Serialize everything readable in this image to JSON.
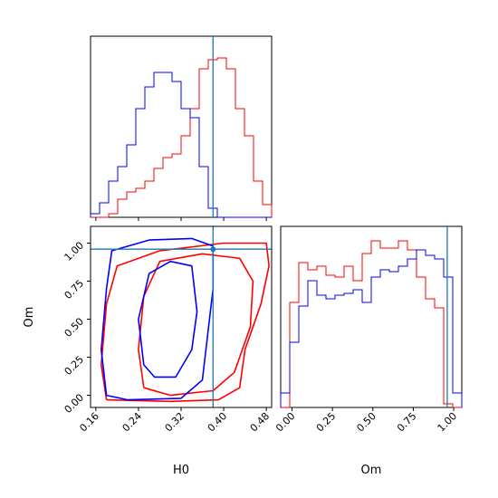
{
  "chart_data": {
    "type": "corner",
    "parameters": [
      "H0",
      "Om"
    ],
    "colors": {
      "series_a": "#ff0000",
      "series_b": "#0000ff",
      "truth": "#1f77b4"
    },
    "truth": {
      "H0": 0.38,
      "Om": 0.96
    },
    "xlim_H0": [
      0.15,
      0.49
    ],
    "xlim_Om": [
      -0.07,
      1.05
    ],
    "ylim_Om": [
      -0.08,
      1.11
    ],
    "ticks_H0": [
      "0.16",
      "0.24",
      "0.32",
      "0.40",
      "0.48"
    ],
    "ticks_Om": [
      "0.00",
      "0.25",
      "0.50",
      "0.75",
      "1.00"
    ],
    "xlabel_H0": "H0",
    "xlabel_Om": "Om",
    "ylabel_Om": "Om",
    "hist_H0": {
      "edges": [
        0.15,
        0.167,
        0.184,
        0.201,
        0.218,
        0.235,
        0.252,
        0.269,
        0.286,
        0.303,
        0.32,
        0.337,
        0.354,
        0.371,
        0.388,
        0.405,
        0.422,
        0.439,
        0.456,
        0.473,
        0.49
      ],
      "series": [
        {
          "color": "#ff0000",
          "values": [
            0,
            0,
            0.02,
            0.1,
            0.14,
            0.16,
            0.2,
            0.27,
            0.33,
            0.35,
            0.45,
            0.6,
            0.82,
            0.87,
            0.88,
            0.82,
            0.6,
            0.45,
            0.2,
            0.07
          ]
        },
        {
          "color": "#0000ff",
          "values": [
            0.02,
            0.08,
            0.2,
            0.28,
            0.4,
            0.6,
            0.72,
            0.8,
            0.8,
            0.75,
            0.6,
            0.55,
            0.28,
            0.05,
            0,
            0,
            0,
            0,
            0,
            0
          ]
        }
      ]
    },
    "hist_Om": {
      "edges": [
        -0.07,
        -0.014,
        0.042,
        0.098,
        0.154,
        0.21,
        0.266,
        0.322,
        0.378,
        0.434,
        0.49,
        0.546,
        0.602,
        0.658,
        0.714,
        0.77,
        0.826,
        0.882,
        0.938,
        0.994,
        1.05
      ],
      "series": [
        {
          "color": "#ff0000",
          "values": [
            0,
            0.58,
            0.8,
            0.76,
            0.78,
            0.73,
            0.72,
            0.78,
            0.7,
            0.85,
            0.92,
            0.88,
            0.88,
            0.92,
            0.87,
            0.72,
            0.6,
            0.55,
            0.02,
            0
          ]
        },
        {
          "color": "#0000ff",
          "values": [
            0.08,
            0.36,
            0.56,
            0.7,
            0.62,
            0.6,
            0.62,
            0.63,
            0.65,
            0.58,
            0.72,
            0.76,
            0.75,
            0.78,
            0.82,
            0.87,
            0.84,
            0.82,
            0.72,
            0.08
          ]
        }
      ]
    },
    "contours": [
      {
        "color": "#ff0000",
        "level": "outer",
        "points": [
          [
            0.18,
            -0.03
          ],
          [
            0.17,
            0.2
          ],
          [
            0.18,
            0.6
          ],
          [
            0.2,
            0.85
          ],
          [
            0.28,
            0.95
          ],
          [
            0.4,
            1.0
          ],
          [
            0.48,
            1.0
          ],
          [
            0.485,
            0.85
          ],
          [
            0.47,
            0.6
          ],
          [
            0.44,
            0.3
          ],
          [
            0.43,
            0.05
          ],
          [
            0.39,
            -0.03
          ],
          [
            0.3,
            -0.04
          ],
          [
            0.18,
            -0.03
          ]
        ]
      },
      {
        "color": "#ff0000",
        "level": "inner",
        "points": [
          [
            0.25,
            0.05
          ],
          [
            0.24,
            0.3
          ],
          [
            0.25,
            0.65
          ],
          [
            0.28,
            0.88
          ],
          [
            0.36,
            0.93
          ],
          [
            0.43,
            0.9
          ],
          [
            0.455,
            0.75
          ],
          [
            0.45,
            0.45
          ],
          [
            0.42,
            0.15
          ],
          [
            0.38,
            0.03
          ],
          [
            0.3,
            0.0
          ],
          [
            0.25,
            0.05
          ]
        ]
      },
      {
        "color": "#0000ff",
        "level": "outer",
        "points": [
          [
            0.18,
            0.0
          ],
          [
            0.17,
            0.3
          ],
          [
            0.18,
            0.7
          ],
          [
            0.19,
            0.95
          ],
          [
            0.26,
            1.02
          ],
          [
            0.34,
            1.03
          ],
          [
            0.38,
            0.98
          ],
          [
            0.38,
            0.7
          ],
          [
            0.37,
            0.4
          ],
          [
            0.36,
            0.1
          ],
          [
            0.32,
            -0.02
          ],
          [
            0.22,
            -0.03
          ],
          [
            0.18,
            0.0
          ]
        ]
      },
      {
        "color": "#0000ff",
        "level": "inner",
        "points": [
          [
            0.25,
            0.2
          ],
          [
            0.24,
            0.5
          ],
          [
            0.26,
            0.8
          ],
          [
            0.3,
            0.88
          ],
          [
            0.34,
            0.85
          ],
          [
            0.35,
            0.55
          ],
          [
            0.34,
            0.3
          ],
          [
            0.31,
            0.12
          ],
          [
            0.27,
            0.12
          ],
          [
            0.25,
            0.2
          ]
        ]
      }
    ]
  }
}
